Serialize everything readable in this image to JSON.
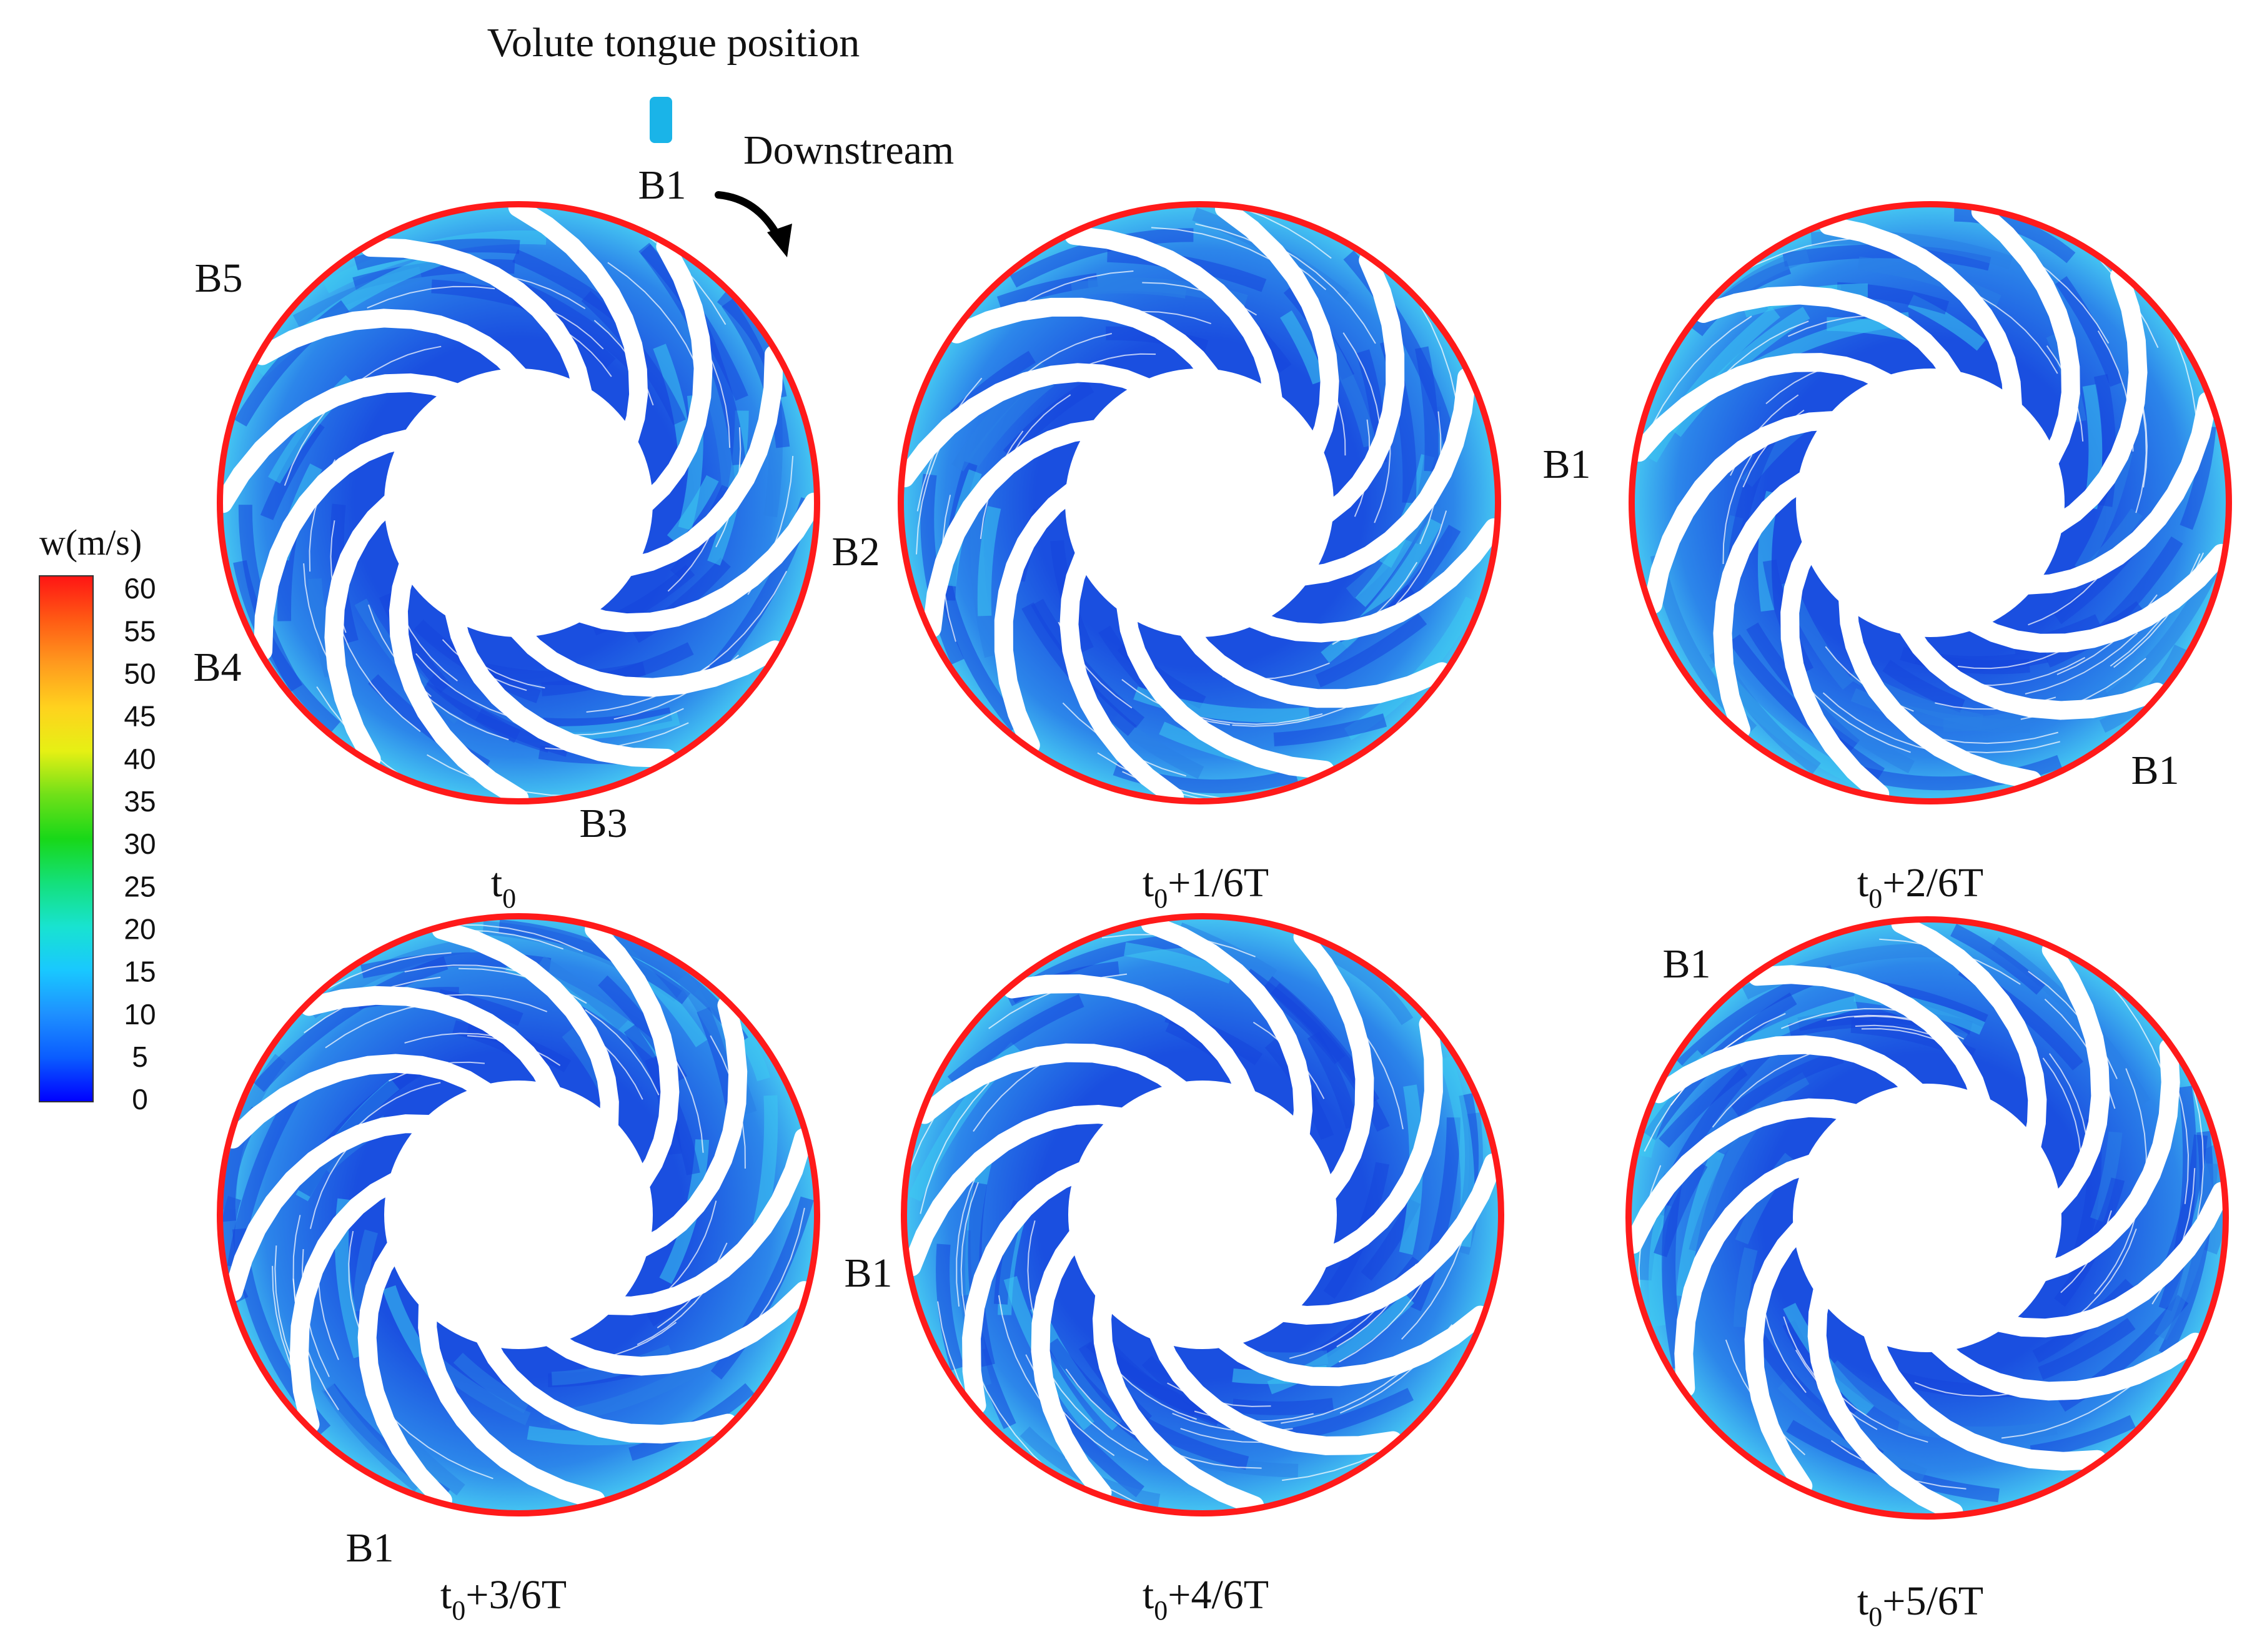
{
  "header": {
    "tongue_label": "Volute tongue position",
    "direction_label": "Downstream"
  },
  "colorbar": {
    "title": "w(m/s)",
    "ticks": [
      "60",
      "55",
      "50",
      "45",
      "40",
      "35",
      "30",
      "25",
      "20",
      "15",
      "10",
      "5",
      "0"
    ],
    "range": [
      0,
      60
    ],
    "stops": [
      "#0000ff",
      "#0a5cff",
      "#1e90ff",
      "#19c8ff",
      "#18e3d0",
      "#14e07a",
      "#18d818",
      "#70e018",
      "#e6f014",
      "#ffd21e",
      "#ff9a1e",
      "#ff5a14",
      "#ff1414"
    ]
  },
  "colors": {
    "tongue_marker": "#1ab4e8",
    "rim": "#ff1a1a",
    "flow_dark": "#1646dc",
    "flow_mid": "#2a7fe6",
    "flow_light": "#3cc8f0"
  },
  "panels": [
    {
      "id": "p0",
      "caption": {
        "base": "t",
        "sub": "0",
        "rest": ""
      },
      "blade_labels": [
        {
          "text": "B1",
          "id": "b1"
        },
        {
          "text": "B2",
          "id": "b2"
        },
        {
          "text": "B3",
          "id": "b3"
        },
        {
          "text": "B4",
          "id": "b4"
        },
        {
          "text": "B5",
          "id": "b5"
        }
      ]
    },
    {
      "id": "p1",
      "caption": {
        "base": "t",
        "sub": "0",
        "rest": "+1/6T"
      },
      "blade_labels": [
        {
          "text": "B1",
          "id": "b1"
        }
      ]
    },
    {
      "id": "p2",
      "caption": {
        "base": "t",
        "sub": "0",
        "rest": "+2/6T"
      },
      "blade_labels": [
        {
          "text": "B1",
          "id": "b1"
        }
      ]
    },
    {
      "id": "p3",
      "caption": {
        "base": "t",
        "sub": "0",
        "rest": "+3/6T"
      },
      "blade_labels": [
        {
          "text": "B1",
          "id": "b1a"
        },
        {
          "text": "B1",
          "id": "b1b"
        }
      ]
    },
    {
      "id": "p4",
      "caption": {
        "base": "t",
        "sub": "0",
        "rest": "+4/6T"
      },
      "blade_labels": []
    },
    {
      "id": "p5",
      "caption": {
        "base": "t",
        "sub": "0",
        "rest": "+5/6T"
      },
      "blade_labels": [
        {
          "text": "B1",
          "id": "b1"
        }
      ]
    }
  ]
}
